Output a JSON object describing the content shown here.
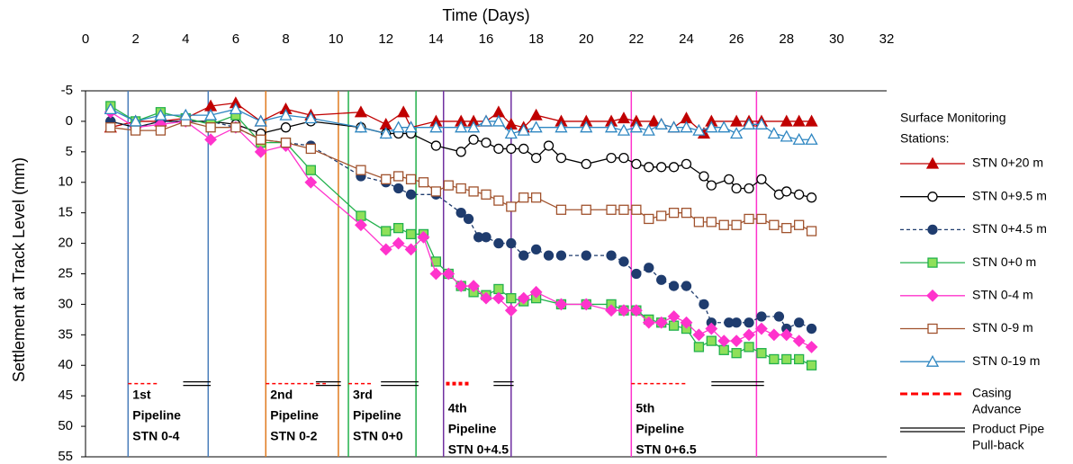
{
  "chart_data": {
    "type": "line",
    "title": "Time (Days)",
    "y_label": "Settlement at Track Level (mm)",
    "xlim": [
      0,
      32
    ],
    "xticks": [
      0,
      2,
      4,
      6,
      8,
      10,
      12,
      14,
      16,
      18,
      20,
      22,
      24,
      26,
      28,
      30,
      32
    ],
    "ylim": [
      -5,
      55
    ],
    "yticks": [
      -5,
      0,
      5,
      10,
      15,
      20,
      25,
      30,
      35,
      40,
      45,
      50,
      55
    ],
    "y_inverted": true,
    "x_axis_position": "top",
    "legend_title": [
      "Surface Monitoring",
      "Stations:"
    ],
    "series": [
      {
        "name": "STN 0+20  m",
        "color": "#c00000",
        "marker": "triangle",
        "marker_fill": "filled",
        "dashed": false,
        "x": [
          1,
          2,
          3,
          4,
          5,
          6,
          7,
          8,
          9,
          11,
          12,
          12.7,
          13,
          14,
          15,
          15.5,
          16,
          16.5,
          17,
          17.5,
          18,
          19,
          20,
          21,
          21.5,
          22,
          22.7,
          23,
          23.5,
          24,
          24.7,
          25,
          26,
          26.5,
          27,
          28,
          28.5,
          29
        ],
        "values": [
          1,
          0,
          0,
          -0.5,
          -2.5,
          -3,
          0,
          -2,
          -1,
          -1.5,
          0.5,
          -1.5,
          1,
          0,
          0,
          0,
          0,
          -1.5,
          0.5,
          1,
          -1,
          0,
          0,
          0,
          -0.5,
          0,
          0,
          0.5,
          1,
          -0.5,
          2,
          0,
          0,
          0,
          0,
          0,
          0,
          0
        ]
      },
      {
        "name": "STN 0+9.5  m",
        "color": "#000000",
        "marker": "circle",
        "marker_fill": "open",
        "dashed": false,
        "x": [
          1,
          2,
          3,
          4,
          5,
          6,
          7,
          8,
          9,
          11,
          12,
          12.5,
          13,
          14,
          15,
          15.5,
          16,
          16.5,
          17,
          17.5,
          18,
          18.5,
          19,
          20,
          21,
          21.5,
          22,
          22.5,
          23,
          23.5,
          24,
          24.7,
          25,
          25.7,
          26,
          26.5,
          27,
          27.7,
          28,
          28.5,
          29
        ],
        "values": [
          0,
          1,
          0,
          0,
          0,
          0.5,
          2,
          1,
          0,
          1,
          2,
          2,
          2,
          4,
          5,
          3,
          3.5,
          4.5,
          4.5,
          4.5,
          6,
          4,
          6,
          7,
          6,
          6,
          7,
          7.5,
          7.5,
          7.5,
          7,
          9,
          10.5,
          9.5,
          11,
          11,
          9.5,
          12,
          11.5,
          12,
          12.5
        ]
      },
      {
        "name": "STN 0+4.5 m",
        "color": "#1f3c6e",
        "marker": "circle",
        "marker_fill": "filled",
        "dashed": true,
        "x": [
          1,
          2,
          3,
          4,
          5,
          6,
          7,
          8,
          9,
          11,
          12,
          12.5,
          13,
          14,
          15,
          15.3,
          15.7,
          16,
          16.5,
          17,
          17.5,
          18,
          18.5,
          19,
          20,
          21,
          21.5,
          22,
          22.5,
          23,
          23.5,
          24,
          24.7,
          25,
          25.7,
          26,
          26.5,
          27,
          27.7,
          28,
          28.5,
          29
        ],
        "values": [
          0,
          1,
          0,
          0,
          0,
          1,
          3,
          3.5,
          4,
          9,
          10,
          11,
          12,
          12,
          15,
          16,
          19,
          19,
          20,
          20,
          22,
          21,
          22,
          22,
          22,
          22,
          23,
          25,
          24,
          26,
          27,
          27,
          30,
          33,
          33,
          33,
          33,
          32,
          32,
          34,
          33,
          34
        ]
      },
      {
        "name": "STN 0+0  m",
        "color": "#22b14c",
        "marker": "square",
        "marker_fill": "#8fe05a",
        "dashed": false,
        "x": [
          1,
          2,
          3,
          4,
          5,
          6,
          7,
          8,
          9,
          11,
          12,
          12.5,
          13,
          13.5,
          14,
          14.5,
          15,
          15.5,
          16,
          16.5,
          17,
          17.5,
          18,
          19,
          20,
          21,
          21.5,
          22,
          22.5,
          23,
          23.5,
          24,
          24.5,
          25,
          25.5,
          26,
          26.5,
          27,
          27.5,
          28,
          28.5,
          29
        ],
        "values": [
          -2.5,
          0,
          -1.5,
          -0.5,
          0.5,
          -1,
          3.5,
          3.5,
          8,
          15.5,
          18,
          17.5,
          18.5,
          18.5,
          23,
          25,
          27,
          28,
          28.5,
          27.5,
          29,
          29.5,
          29,
          30,
          30,
          30,
          31,
          31,
          32.5,
          33,
          33.5,
          34,
          37,
          36,
          37.5,
          38,
          37,
          38,
          39,
          39,
          39,
          40
        ]
      },
      {
        "name": "STN 0-4  m",
        "color": "#ff33cc",
        "marker": "diamond",
        "marker_fill": "filled",
        "dashed": false,
        "x": [
          1,
          2,
          3,
          4,
          5,
          6,
          7,
          8,
          9,
          11,
          12,
          12.5,
          13,
          13.5,
          14,
          14.5,
          15,
          15.5,
          16,
          16.5,
          17,
          17.5,
          18,
          19,
          20,
          21,
          21.5,
          22,
          22.5,
          23,
          23.5,
          24,
          24.5,
          25,
          25.5,
          26,
          26.5,
          27,
          27.5,
          28,
          28.5,
          29
        ],
        "values": [
          -1.5,
          1,
          0.5,
          0,
          3,
          1,
          5,
          4,
          10,
          17,
          21,
          20,
          21,
          19,
          25,
          25,
          27,
          27,
          29,
          29,
          31,
          29,
          28,
          30,
          30,
          31,
          31,
          31,
          33,
          33,
          32,
          33,
          35,
          34,
          36,
          36,
          35,
          34,
          35,
          35,
          36,
          37
        ]
      },
      {
        "name": "STN 0-9  m",
        "color": "#a0522d",
        "marker": "square",
        "marker_fill": "open",
        "dashed": false,
        "x": [
          1,
          2,
          3,
          4,
          5,
          6,
          7,
          8,
          9,
          11,
          12,
          12.5,
          13,
          13.5,
          14,
          14.5,
          15,
          15.5,
          16,
          16.5,
          17,
          17.5,
          18,
          19,
          20,
          21,
          21.5,
          22,
          22.5,
          23,
          23.5,
          24,
          24.5,
          25,
          25.5,
          26,
          26.5,
          27,
          27.5,
          28,
          28.5,
          29
        ],
        "values": [
          1,
          1.5,
          1.5,
          0,
          1,
          1,
          3,
          3.5,
          4.5,
          8,
          9.5,
          9,
          9.5,
          10,
          11.5,
          10.5,
          11,
          11.5,
          12,
          13,
          14,
          12.5,
          12.5,
          14.5,
          14.5,
          14.5,
          14.5,
          14.5,
          16,
          15.5,
          15,
          15,
          16.5,
          16.5,
          17,
          17,
          16,
          16,
          17,
          17.5,
          17,
          18
        ]
      },
      {
        "name": "STN 0-19  m",
        "color": "#2e86c1",
        "marker": "triangle",
        "marker_fill": "open",
        "dashed": false,
        "x": [
          1,
          2,
          3,
          4,
          5,
          6,
          7,
          8,
          9,
          11,
          12,
          12.5,
          13,
          14,
          15,
          15.5,
          16,
          16.5,
          17,
          17.5,
          18,
          19,
          20,
          21,
          21.5,
          22,
          22.5,
          23,
          23.5,
          24,
          24.5,
          25,
          25.5,
          26,
          26.5,
          27,
          27.5,
          28,
          28.5,
          29
        ],
        "values": [
          -2,
          0,
          -1,
          -1,
          -1,
          -2,
          0,
          -1,
          -0.5,
          1,
          2,
          1,
          1,
          1,
          1,
          1,
          0,
          0,
          2,
          1.5,
          1,
          1,
          1,
          1,
          1.5,
          1,
          1.5,
          0.5,
          1,
          1,
          1.5,
          1,
          1,
          2,
          0.5,
          0.5,
          2,
          2.5,
          3,
          3
        ]
      }
    ],
    "casing_legend": [
      "Casing",
      "Advance"
    ],
    "pullback_legend": [
      "Product Pipe",
      "Pull-back"
    ],
    "segment_level": 43,
    "pipelines": [
      {
        "label": [
          "1st",
          "Pipeline",
          "STN 0-4"
        ],
        "color": "#4a7ebb",
        "start": 1.7,
        "end": 4.9,
        "casing": [
          1.7,
          2.9
        ],
        "pullback": [
          3.9,
          5.0
        ]
      },
      {
        "label": [
          "2nd",
          "Pipeline",
          "STN 0-2"
        ],
        "color": "#e07b20",
        "start": 7.2,
        "end": 10.1,
        "casing": [
          7.2,
          9.6
        ],
        "pullback": [
          9.2,
          10.2
        ]
      },
      {
        "label": [
          "3rd",
          "Pipeline",
          "STN 0+0"
        ],
        "color": "#22b14c",
        "start": 10.5,
        "end": 13.2,
        "casing": [
          10.5,
          11.5
        ],
        "pullback": [
          11.8,
          13.3
        ]
      },
      {
        "label": [
          "4th",
          "Pipeline",
          "STN 0+4.5"
        ],
        "color": "#7030a0",
        "start": 14.3,
        "end": 17.0,
        "casing": [
          14.4,
          15.4
        ],
        "pullback": [
          16.3,
          17.1
        ]
      },
      {
        "label": [
          "5th",
          "Pipeline",
          "STN 0+6.5"
        ],
        "color": "#ff33cc",
        "start": 21.8,
        "end": 26.8,
        "casing": [
          21.8,
          24.0
        ],
        "pullback": [
          25.0,
          27.1
        ]
      }
    ]
  }
}
